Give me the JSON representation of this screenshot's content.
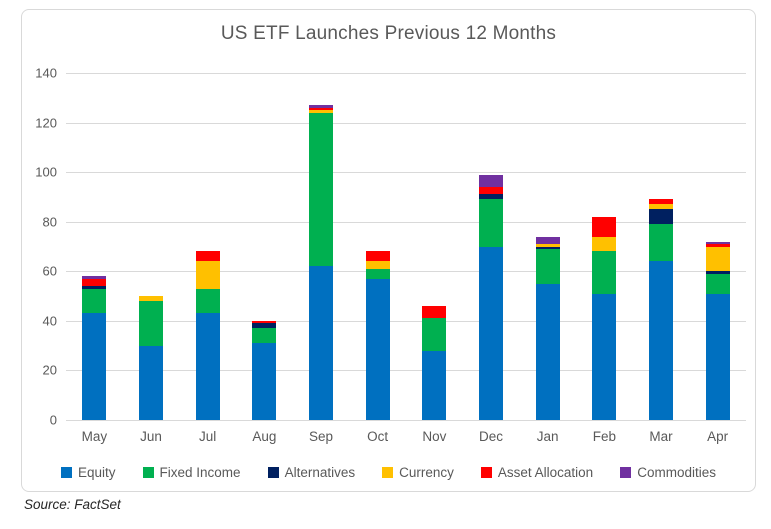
{
  "chart": {
    "title": "US ETF Launches Previous 12 Months"
  },
  "source": {
    "label": "Source: FactSet"
  },
  "colors": {
    "equity_blue": "#0070C0",
    "fixed_income_green": "#00B050",
    "alternatives_navy": "#002060",
    "currency_yellow": "#FFC000",
    "asset_allocation_red": "#FF0000",
    "commodities_purple": "#7030A0",
    "gridline_gray": "#D9D9D9",
    "axis_text_gray": "#595959"
  },
  "chart_data": {
    "type": "bar",
    "stacked": true,
    "title": "US ETF Launches Previous 12 Months",
    "xlabel": "",
    "ylabel": "",
    "ylim": [
      0,
      140
    ],
    "yticks": [
      0,
      20,
      40,
      60,
      80,
      100,
      120,
      140
    ],
    "grid": true,
    "legend_position": "bottom",
    "categories": [
      "May",
      "Jun",
      "Jul",
      "Aug",
      "Sep",
      "Oct",
      "Nov",
      "Dec",
      "Jan",
      "Feb",
      "Mar",
      "Apr"
    ],
    "series": [
      {
        "name": "Equity",
        "color": "#0070C0",
        "values": [
          43,
          30,
          43,
          31,
          62,
          57,
          28,
          70,
          55,
          51,
          64,
          51
        ]
      },
      {
        "name": "Fixed Income",
        "color": "#00B050",
        "values": [
          10,
          18,
          10,
          6,
          62,
          4,
          13,
          19,
          14,
          17,
          15,
          8
        ]
      },
      {
        "name": "Alternatives",
        "color": "#002060",
        "values": [
          1,
          0,
          0,
          2,
          0,
          0,
          0,
          2,
          1,
          0,
          6,
          1
        ]
      },
      {
        "name": "Currency",
        "color": "#FFC000",
        "values": [
          0,
          2,
          11,
          0,
          1,
          3,
          0,
          0,
          1,
          6,
          2,
          10
        ]
      },
      {
        "name": "Asset Allocation",
        "color": "#FF0000",
        "values": [
          3,
          0,
          4,
          1,
          1,
          4,
          5,
          3,
          0,
          8,
          2,
          1
        ]
      },
      {
        "name": "Commodities",
        "color": "#7030A0",
        "values": [
          1,
          0,
          0,
          0,
          1,
          0,
          0,
          5,
          3,
          0,
          0,
          1
        ]
      }
    ],
    "totals": [
      58,
      50,
      68,
      40,
      127,
      68,
      46,
      99,
      74,
      82,
      89,
      72
    ]
  }
}
